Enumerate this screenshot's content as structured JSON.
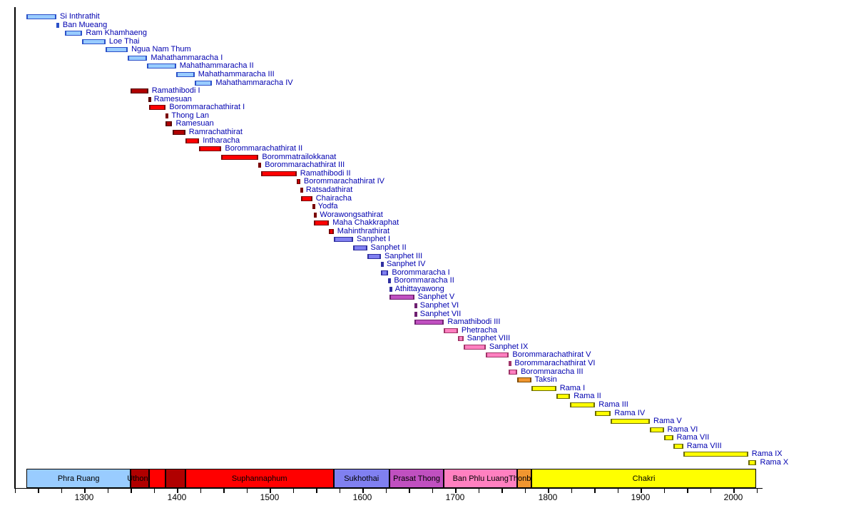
{
  "colors": {
    "background": "#FFFFFF",
    "monarch_label_text": "#0000B0",
    "axis_text": "#000000",
    "dynasties": {
      "phra_ruang": {
        "fill": "#99CCFF",
        "border": "#2B50C8"
      },
      "uthong": {
        "fill": "#B00000",
        "border": "#550000"
      },
      "suphannaphum": {
        "fill": "#FF0000",
        "border": "#7A0000"
      },
      "sukhothai": {
        "fill": "#8080F0",
        "border": "#2F2FA0"
      },
      "prasat_thong": {
        "fill": "#C050C0",
        "border": "#6E2070"
      },
      "ban_phlu_luang": {
        "fill": "#FF80C0",
        "border": "#A03468"
      },
      "thonburi": {
        "fill": "#F09630",
        "border": "#7D4A00"
      },
      "chakri": {
        "fill": "#FFFF00",
        "border": "#6B6B00"
      }
    }
  },
  "chart_data": {
    "type": "timeline",
    "axis": {
      "start": 1225,
      "end": 2025,
      "minor_tick_years": 25,
      "major_tick_years": 100,
      "labels": [
        "1300",
        "1400",
        "1500",
        "1600",
        "1700",
        "1800",
        "1900",
        "2000"
      ]
    },
    "monarchs": [
      {
        "name": "Si Inthrathit",
        "start": 1238,
        "end": 1270,
        "dynasty": "phra_ruang"
      },
      {
        "name": "Ban Mueang",
        "start": 1270,
        "end": 1273,
        "dynasty": "phra_ruang"
      },
      {
        "name": "Ram Khamhaeng",
        "start": 1279,
        "end": 1298,
        "dynasty": "phra_ruang"
      },
      {
        "name": "Loe Thai",
        "start": 1298,
        "end": 1323,
        "dynasty": "phra_ruang"
      },
      {
        "name": "Ngua Nam Thum",
        "start": 1323,
        "end": 1347,
        "dynasty": "phra_ruang"
      },
      {
        "name": "Mahathammaracha I",
        "start": 1347,
        "end": 1368,
        "dynasty": "phra_ruang"
      },
      {
        "name": "Mahathammaracha II",
        "start": 1368,
        "end": 1399,
        "dynasty": "phra_ruang"
      },
      {
        "name": "Mahathammaracha III",
        "start": 1399,
        "end": 1419,
        "dynasty": "phra_ruang"
      },
      {
        "name": "Mahathammaracha IV",
        "start": 1419,
        "end": 1438,
        "dynasty": "phra_ruang"
      },
      {
        "name": "Ramathibodi I",
        "start": 1350,
        "end": 1369,
        "dynasty": "uthong"
      },
      {
        "name": "Ramesuan",
        "start": 1369,
        "end": 1370,
        "dynasty": "uthong"
      },
      {
        "name": "Borommarachathirat I",
        "start": 1370,
        "end": 1388,
        "dynasty": "suphannaphum"
      },
      {
        "name": "Thong Lan",
        "start": 1388,
        "end": 1388,
        "dynasty": "suphannaphum"
      },
      {
        "name": "Ramesuan",
        "start": 1388,
        "end": 1395,
        "dynasty": "uthong"
      },
      {
        "name": "Ramrachathirat",
        "start": 1395,
        "end": 1409,
        "dynasty": "uthong"
      },
      {
        "name": "Intharacha",
        "start": 1409,
        "end": 1424,
        "dynasty": "suphannaphum"
      },
      {
        "name": "Borommarachathirat II",
        "start": 1424,
        "end": 1448,
        "dynasty": "suphannaphum"
      },
      {
        "name": "Borommatrailokkanat",
        "start": 1448,
        "end": 1488,
        "dynasty": "suphannaphum"
      },
      {
        "name": "Borommarachathirat III",
        "start": 1488,
        "end": 1491,
        "dynasty": "suphannaphum"
      },
      {
        "name": "Ramathibodi II",
        "start": 1491,
        "end": 1529,
        "dynasty": "suphannaphum"
      },
      {
        "name": "Borommarachathirat IV",
        "start": 1529,
        "end": 1533,
        "dynasty": "suphannaphum"
      },
      {
        "name": "Ratsadathirat",
        "start": 1533,
        "end": 1534,
        "dynasty": "suphannaphum"
      },
      {
        "name": "Chairacha",
        "start": 1534,
        "end": 1546,
        "dynasty": "suphannaphum"
      },
      {
        "name": "Yodfa",
        "start": 1546,
        "end": 1548,
        "dynasty": "suphannaphum"
      },
      {
        "name": "Worawongsathirat",
        "start": 1548,
        "end": 1548,
        "dynasty": "suphannaphum"
      },
      {
        "name": "Maha Chakkraphat",
        "start": 1548,
        "end": 1564,
        "dynasty": "suphannaphum"
      },
      {
        "name": "Mahinthrathirat",
        "start": 1564,
        "end": 1569,
        "dynasty": "suphannaphum"
      },
      {
        "name": "Sanphet I",
        "start": 1569,
        "end": 1590,
        "dynasty": "sukhothai"
      },
      {
        "name": "Sanphet II",
        "start": 1590,
        "end": 1605,
        "dynasty": "sukhothai"
      },
      {
        "name": "Sanphet III",
        "start": 1605,
        "end": 1620,
        "dynasty": "sukhothai"
      },
      {
        "name": "Sanphet IV",
        "start": 1620,
        "end": 1620,
        "dynasty": "sukhothai"
      },
      {
        "name": "Borommaracha I",
        "start": 1620,
        "end": 1628,
        "dynasty": "sukhothai"
      },
      {
        "name": "Borommaracha II",
        "start": 1628,
        "end": 1629,
        "dynasty": "sukhothai"
      },
      {
        "name": "Athittayawong",
        "start": 1629,
        "end": 1629,
        "dynasty": "sukhothai"
      },
      {
        "name": "Sanphet V",
        "start": 1629,
        "end": 1656,
        "dynasty": "prasat_thong"
      },
      {
        "name": "Sanphet VI",
        "start": 1656,
        "end": 1656,
        "dynasty": "prasat_thong"
      },
      {
        "name": "Sanphet VII",
        "start": 1656,
        "end": 1656,
        "dynasty": "prasat_thong"
      },
      {
        "name": "Ramathibodi III",
        "start": 1656,
        "end": 1688,
        "dynasty": "prasat_thong"
      },
      {
        "name": "Phetracha",
        "start": 1688,
        "end": 1703,
        "dynasty": "ban_phlu_luang"
      },
      {
        "name": "Sanphet VIII",
        "start": 1703,
        "end": 1709,
        "dynasty": "ban_phlu_luang"
      },
      {
        "name": "Sanphet IX",
        "start": 1709,
        "end": 1733,
        "dynasty": "ban_phlu_luang"
      },
      {
        "name": "Borommarachathirat V",
        "start": 1733,
        "end": 1758,
        "dynasty": "ban_phlu_luang"
      },
      {
        "name": "Borommarachathirat VI",
        "start": 1758,
        "end": 1758,
        "dynasty": "ban_phlu_luang"
      },
      {
        "name": "Borommaracha III",
        "start": 1758,
        "end": 1767,
        "dynasty": "ban_phlu_luang"
      },
      {
        "name": "Taksin",
        "start": 1767,
        "end": 1782,
        "dynasty": "thonburi"
      },
      {
        "name": "Rama I",
        "start": 1782,
        "end": 1809,
        "dynasty": "chakri"
      },
      {
        "name": "Rama II",
        "start": 1809,
        "end": 1824,
        "dynasty": "chakri"
      },
      {
        "name": "Rama III",
        "start": 1824,
        "end": 1851,
        "dynasty": "chakri"
      },
      {
        "name": "Rama IV",
        "start": 1851,
        "end": 1868,
        "dynasty": "chakri"
      },
      {
        "name": "Rama V",
        "start": 1868,
        "end": 1910,
        "dynasty": "chakri"
      },
      {
        "name": "Rama VI",
        "start": 1910,
        "end": 1925,
        "dynasty": "chakri"
      },
      {
        "name": "Rama VII",
        "start": 1925,
        "end": 1935,
        "dynasty": "chakri"
      },
      {
        "name": "Rama VIII",
        "start": 1935,
        "end": 1946,
        "dynasty": "chakri"
      },
      {
        "name": "Rama IX",
        "start": 1946,
        "end": 2016,
        "dynasty": "chakri"
      },
      {
        "name": "Rama X",
        "start": 2016,
        "end": 2025,
        "dynasty": "chakri"
      }
    ],
    "strip": [
      {
        "label": "Phra Ruang",
        "start": 1238,
        "end": 1350,
        "dynasty": "phra_ruang"
      },
      {
        "label": "Uthong",
        "start": 1350,
        "end": 1370,
        "dynasty": "uthong"
      },
      {
        "label": "",
        "start": 1370,
        "end": 1388,
        "dynasty": "suphannaphum"
      },
      {
        "label": "",
        "start": 1388,
        "end": 1409,
        "dynasty": "uthong"
      },
      {
        "label": "Suphannaphum",
        "start": 1409,
        "end": 1569,
        "dynasty": "suphannaphum"
      },
      {
        "label": "Sukhothai",
        "start": 1569,
        "end": 1629,
        "dynasty": "sukhothai"
      },
      {
        "label": "Prasat Thong",
        "start": 1629,
        "end": 1688,
        "dynasty": "prasat_thong"
      },
      {
        "label": "Ban Phlu Luang",
        "start": 1688,
        "end": 1767,
        "dynasty": "ban_phlu_luang"
      },
      {
        "label": "Thonburi",
        "start": 1767,
        "end": 1782,
        "dynasty": "thonburi"
      },
      {
        "label": "Chakri",
        "start": 1782,
        "end": 2025,
        "dynasty": "chakri"
      }
    ]
  }
}
